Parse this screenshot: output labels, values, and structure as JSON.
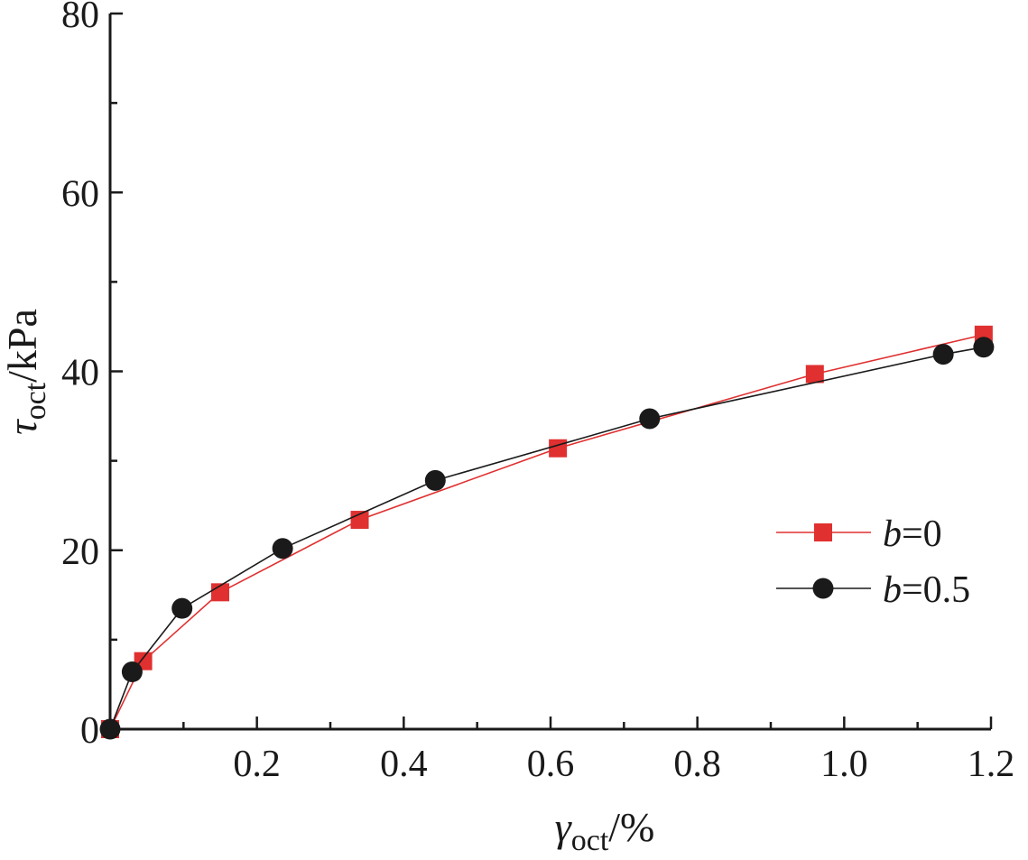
{
  "chart_data": {
    "type": "line",
    "xlabel": {
      "symbol": "γ",
      "subscript": "oct",
      "unit": "/%"
    },
    "ylabel": {
      "symbol": "τ",
      "subscript": "oct",
      "unit": "/kPa"
    },
    "xlim": [
      0,
      1.2
    ],
    "ylim": [
      0,
      80
    ],
    "x_ticks": [
      0.2,
      0.4,
      0.6,
      0.8,
      1.0,
      1.2
    ],
    "x_tick_labels": [
      "0.2",
      "0.4",
      "0.6",
      "0.8",
      "1.0",
      "1.2"
    ],
    "x_minor_ticks": [
      0.1,
      0.3,
      0.5,
      0.7,
      0.9,
      1.1
    ],
    "y_ticks": [
      0,
      20,
      40,
      60,
      80
    ],
    "y_tick_labels": [
      "0",
      "20",
      "40",
      "60",
      "80"
    ],
    "y_minor_ticks": [
      10,
      30,
      50,
      70
    ],
    "grid": false,
    "legend_position": "right",
    "series": [
      {
        "name": "b=0",
        "name_italic": "b",
        "name_rest": "=0",
        "color": "#e03030",
        "marker": "square",
        "points": [
          [
            0.0,
            0.0
          ],
          [
            0.045,
            7.6
          ],
          [
            0.15,
            15.3
          ],
          [
            0.34,
            23.4
          ],
          [
            0.61,
            31.4
          ],
          [
            0.96,
            39.7
          ],
          [
            1.19,
            44.1
          ]
        ]
      },
      {
        "name": "b=0.5",
        "name_italic": "b",
        "name_rest": "=0.5",
        "color": "#1a1a1a",
        "marker": "circle",
        "points": [
          [
            0.0,
            0.0
          ],
          [
            0.03,
            6.4
          ],
          [
            0.098,
            13.5
          ],
          [
            0.235,
            20.2
          ],
          [
            0.443,
            27.8
          ],
          [
            0.735,
            34.7
          ],
          [
            1.135,
            41.9
          ],
          [
            1.19,
            42.7
          ]
        ]
      }
    ]
  }
}
